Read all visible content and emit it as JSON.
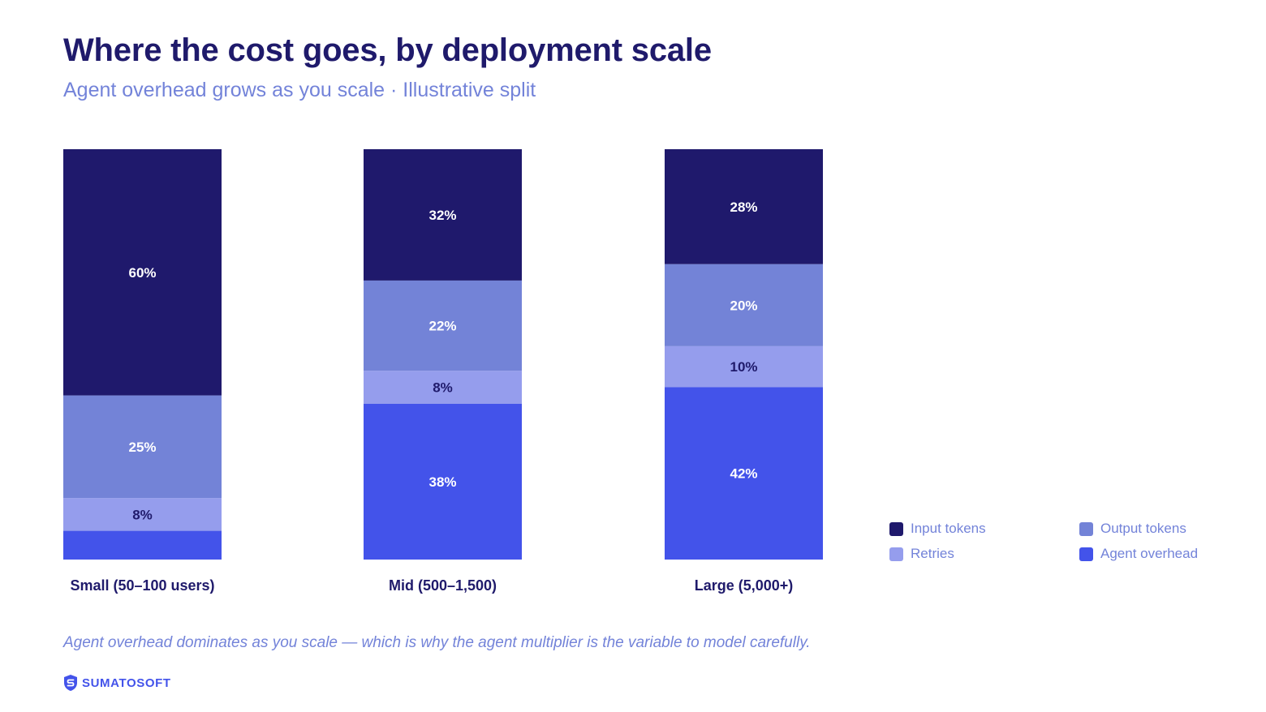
{
  "title": "Where the cost goes, by deployment scale",
  "subtitle": "Agent overhead grows as you scale · Illustrative split",
  "footnote": "Agent overhead dominates as you scale — which is why the agent multiplier is the variable to model carefully.",
  "brand": {
    "name": "SUMATOSOFT",
    "color": "#4353ea"
  },
  "chart_data": {
    "type": "bar",
    "stacked": true,
    "normalized_percent": true,
    "categories": [
      "Small (50–100 users)",
      "Mid (500–1,500)",
      "Large (5,000+)"
    ],
    "series": [
      {
        "name": "Agent overhead",
        "values": [
          7,
          38,
          42
        ],
        "color": "#4353ea",
        "labels": [
          "",
          "38%",
          "42%"
        ],
        "label_color": "#ffffff"
      },
      {
        "name": "Retries",
        "values": [
          8,
          8,
          10
        ],
        "color": "#959ded",
        "labels": [
          "8%",
          "8%",
          "10%"
        ],
        "label_color": "#1f1a6b"
      },
      {
        "name": "Output tokens",
        "values": [
          25,
          22,
          20
        ],
        "color": "#7383d7",
        "labels": [
          "25%",
          "22%",
          "20%"
        ],
        "label_color": "#ffffff"
      },
      {
        "name": "Input tokens",
        "values": [
          60,
          32,
          28
        ],
        "color": "#1f196c",
        "labels": [
          "60%",
          "32%",
          "28%"
        ],
        "label_color": "#ffffff"
      }
    ],
    "ylim": [
      0,
      100
    ],
    "grid": false,
    "legend": {
      "position": "bottom-right",
      "items": [
        {
          "label": "Input tokens",
          "color": "#1f196c"
        },
        {
          "label": "Output tokens",
          "color": "#7383d7"
        },
        {
          "label": "Retries",
          "color": "#959ded"
        },
        {
          "label": "Agent overhead",
          "color": "#4353ea"
        }
      ]
    },
    "xlabel": "",
    "ylabel": ""
  }
}
